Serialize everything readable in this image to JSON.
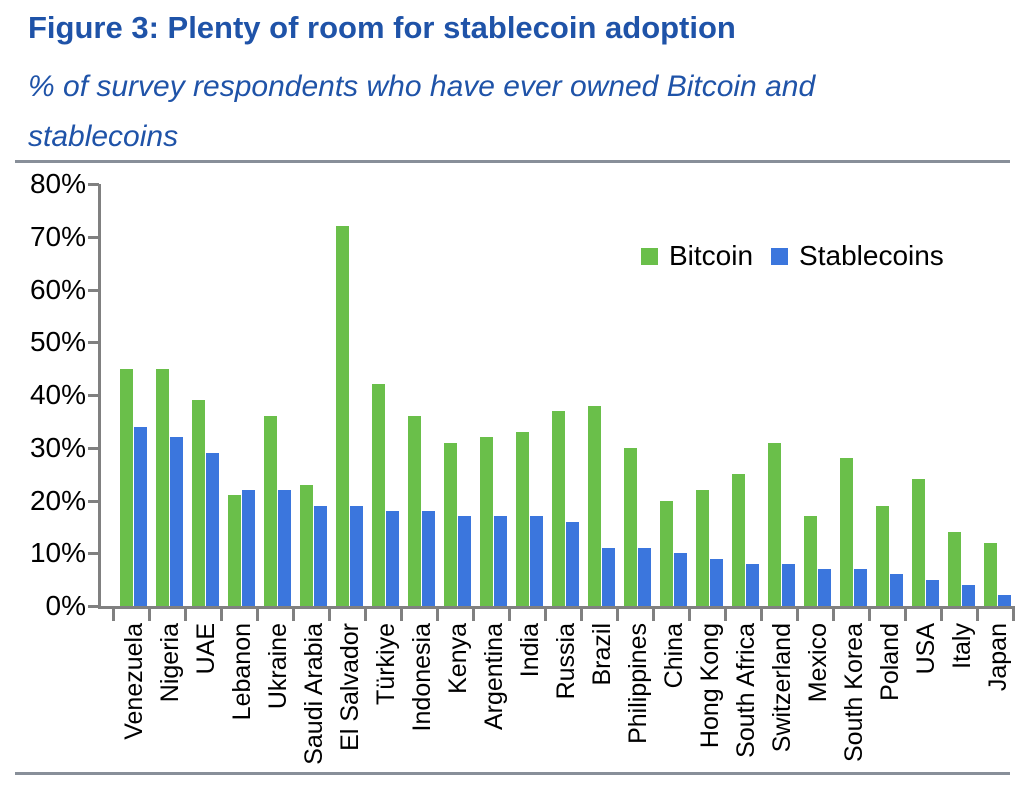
{
  "figure": {
    "title": "Figure 3: Plenty of room for stablecoin adoption",
    "subtitle_lines": [
      "% of survey respondents who have ever owned Bitcoin and",
      "stablecoins"
    ]
  },
  "chart_data": {
    "type": "bar",
    "title": "Figure 3: Plenty of room for stablecoin adoption",
    "subtitle": "% of survey respondents who have ever owned Bitcoin and stablecoins",
    "categories": [
      "Venezuela",
      "Nigeria",
      "UAE",
      "Lebanon",
      "Ukraine",
      "Saudi Arabia",
      "El Salvador",
      "Türkiye",
      "Indonesia",
      "Kenya",
      "Argentina",
      "India",
      "Russia",
      "Brazil",
      "Philippines",
      "China",
      "Hong Kong",
      "South Africa",
      "Switzerland",
      "Mexico",
      "South Korea",
      "Poland",
      "USA",
      "Italy",
      "Japan"
    ],
    "series": [
      {
        "name": "Bitcoin",
        "color": "#6ABF4A",
        "values": [
          45,
          45,
          39,
          21,
          36,
          23,
          72,
          42,
          36,
          31,
          32,
          33,
          37,
          38,
          30,
          20,
          22,
          25,
          31,
          17,
          28,
          19,
          24,
          14,
          12
        ]
      },
      {
        "name": "Stablecoins",
        "color": "#3B76DD",
        "values": [
          34,
          32,
          29,
          22,
          22,
          19,
          19,
          18,
          18,
          17,
          17,
          17,
          16,
          11,
          11,
          10,
          9,
          8,
          8,
          7,
          7,
          6,
          5,
          4,
          2
        ]
      }
    ],
    "xlabel": "",
    "ylabel": "",
    "ylim": [
      0,
      80
    ],
    "yticks": [
      "0%",
      "10%",
      "20%",
      "30%",
      "40%",
      "50%",
      "60%",
      "70%",
      "80%"
    ],
    "value_unit": "%",
    "grid": false,
    "legend_position": "upper-right-inside",
    "bar_orientation": "vertical"
  },
  "colors": {
    "title_blue": "#1F53A8",
    "axis_gray": "#808080",
    "separator_gray": "#888F99",
    "bitcoin_green": "#6ABF4A",
    "stablecoin_blue": "#3B76DD",
    "text_black": "#000000"
  }
}
